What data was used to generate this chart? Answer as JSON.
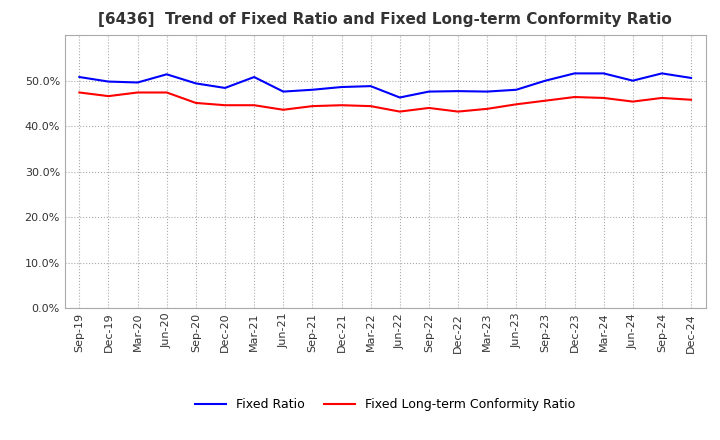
{
  "title": "[6436]  Trend of Fixed Ratio and Fixed Long-term Conformity Ratio",
  "x_labels": [
    "Sep-19",
    "Dec-19",
    "Mar-20",
    "Jun-20",
    "Sep-20",
    "Dec-20",
    "Mar-21",
    "Jun-21",
    "Sep-21",
    "Dec-21",
    "Mar-22",
    "Jun-22",
    "Sep-22",
    "Dec-22",
    "Mar-23",
    "Jun-23",
    "Sep-23",
    "Dec-23",
    "Mar-24",
    "Jun-24",
    "Sep-24",
    "Dec-24"
  ],
  "fixed_ratio": [
    0.508,
    0.498,
    0.496,
    0.514,
    0.494,
    0.484,
    0.508,
    0.476,
    0.48,
    0.486,
    0.488,
    0.463,
    0.476,
    0.477,
    0.476,
    0.48,
    0.5,
    0.516,
    0.516,
    0.5,
    0.516,
    0.506
  ],
  "fixed_lt_conformity": [
    0.474,
    0.466,
    0.474,
    0.474,
    0.451,
    0.446,
    0.446,
    0.436,
    0.444,
    0.446,
    0.444,
    0.432,
    0.44,
    0.432,
    0.438,
    0.448,
    0.456,
    0.464,
    0.462,
    0.454,
    0.462,
    0.458
  ],
  "fixed_ratio_color": "#0000FF",
  "fixed_lt_color": "#FF0000",
  "ylim": [
    0.0,
    0.6
  ],
  "yticks": [
    0.0,
    0.1,
    0.2,
    0.3,
    0.4,
    0.5
  ],
  "background_color": "#FFFFFF",
  "grid_color": "#AAAAAA",
  "legend_fixed_ratio": "Fixed Ratio",
  "legend_fixed_lt": "Fixed Long-term Conformity Ratio",
  "title_fontsize": 11,
  "tick_fontsize": 8,
  "legend_fontsize": 9
}
